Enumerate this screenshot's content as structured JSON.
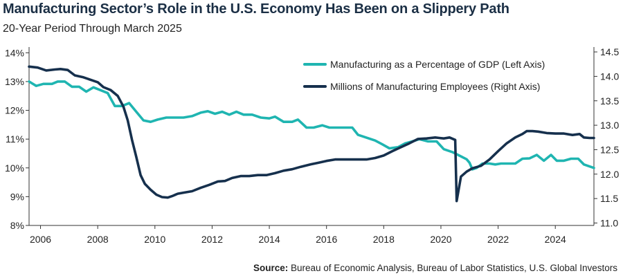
{
  "title": "Manufacturing Sector’s Role in the U.S. Economy Has Been on a Slippery Path",
  "subtitle": "20-Year Period Through March 2025",
  "source_label": "Source:",
  "source_text": "Bureau of Economic Analysis, Bureau of Labor Statistics, U.S. Global Investors",
  "colors": {
    "gdp": "#1fb5b1",
    "employees": "#16304d",
    "axis": "#333333"
  },
  "chart_data": {
    "type": "line",
    "x_ticks": [
      2006,
      2008,
      2010,
      2012,
      2014,
      2016,
      2018,
      2020,
      2022,
      2024
    ],
    "x_range": [
      2005.6,
      2025.35
    ],
    "left_axis": {
      "ticks": [
        "8%",
        "9%",
        "10%",
        "11%",
        "12%",
        "13%",
        "14%"
      ],
      "range": [
        8,
        14.2
      ]
    },
    "right_axis": {
      "ticks": [
        "11.0",
        "11.5",
        "12.0",
        "12.5",
        "13.0",
        "13.5",
        "14.0",
        "14.5"
      ],
      "range": [
        10.95,
        14.6
      ]
    },
    "series": [
      {
        "name": "Manufacturing as a Percentage of GDP (Left Axis)",
        "axis": "left",
        "points": [
          [
            2005.6,
            13.0
          ],
          [
            2005.85,
            12.85
          ],
          [
            2006.1,
            12.92
          ],
          [
            2006.4,
            12.92
          ],
          [
            2006.6,
            13.0
          ],
          [
            2006.85,
            13.0
          ],
          [
            2007.1,
            12.82
          ],
          [
            2007.35,
            12.82
          ],
          [
            2007.6,
            12.65
          ],
          [
            2007.85,
            12.8
          ],
          [
            2008.1,
            12.7
          ],
          [
            2008.35,
            12.6
          ],
          [
            2008.6,
            12.15
          ],
          [
            2008.85,
            12.15
          ],
          [
            2009.1,
            12.25
          ],
          [
            2009.35,
            11.95
          ],
          [
            2009.6,
            11.65
          ],
          [
            2009.85,
            11.6
          ],
          [
            2010.1,
            11.68
          ],
          [
            2010.4,
            11.75
          ],
          [
            2010.7,
            11.75
          ],
          [
            2011.0,
            11.75
          ],
          [
            2011.3,
            11.8
          ],
          [
            2011.6,
            11.92
          ],
          [
            2011.85,
            11.97
          ],
          [
            2012.1,
            11.88
          ],
          [
            2012.35,
            11.95
          ],
          [
            2012.6,
            11.85
          ],
          [
            2012.85,
            11.95
          ],
          [
            2013.1,
            11.85
          ],
          [
            2013.4,
            11.85
          ],
          [
            2013.7,
            11.75
          ],
          [
            2014.0,
            11.72
          ],
          [
            2014.2,
            11.78
          ],
          [
            2014.5,
            11.6
          ],
          [
            2014.8,
            11.6
          ],
          [
            2015.0,
            11.68
          ],
          [
            2015.3,
            11.4
          ],
          [
            2015.55,
            11.4
          ],
          [
            2015.85,
            11.48
          ],
          [
            2016.1,
            11.4
          ],
          [
            2016.4,
            11.4
          ],
          [
            2016.7,
            11.4
          ],
          [
            2016.9,
            11.4
          ],
          [
            2017.1,
            11.15
          ],
          [
            2017.4,
            11.05
          ],
          [
            2017.7,
            10.95
          ],
          [
            2017.95,
            10.82
          ],
          [
            2018.2,
            10.68
          ],
          [
            2018.5,
            10.72
          ],
          [
            2018.75,
            10.85
          ],
          [
            2019.0,
            10.92
          ],
          [
            2019.25,
            11.0
          ],
          [
            2019.55,
            10.92
          ],
          [
            2019.85,
            10.92
          ],
          [
            2020.1,
            10.65
          ],
          [
            2020.4,
            10.55
          ],
          [
            2020.7,
            10.4
          ],
          [
            2020.9,
            10.3
          ],
          [
            2021.0,
            10.18
          ],
          [
            2021.1,
            9.95
          ],
          [
            2021.25,
            10.0
          ],
          [
            2021.45,
            10.15
          ],
          [
            2021.7,
            10.15
          ],
          [
            2021.9,
            10.12
          ],
          [
            2022.1,
            10.15
          ],
          [
            2022.35,
            10.15
          ],
          [
            2022.6,
            10.15
          ],
          [
            2022.85,
            10.32
          ],
          [
            2023.1,
            10.33
          ],
          [
            2023.35,
            10.45
          ],
          [
            2023.6,
            10.25
          ],
          [
            2023.85,
            10.45
          ],
          [
            2024.05,
            10.25
          ],
          [
            2024.3,
            10.25
          ],
          [
            2024.55,
            10.32
          ],
          [
            2024.8,
            10.32
          ],
          [
            2025.0,
            10.12
          ],
          [
            2025.2,
            10.05
          ],
          [
            2025.35,
            10.0
          ]
        ]
      },
      {
        "name": "Millions of Manufacturing Employees (Right Axis)",
        "axis": "right",
        "points": [
          [
            2005.6,
            14.2
          ],
          [
            2005.9,
            14.18
          ],
          [
            2006.2,
            14.12
          ],
          [
            2006.5,
            14.14
          ],
          [
            2006.7,
            14.15
          ],
          [
            2006.95,
            14.13
          ],
          [
            2007.2,
            14.02
          ],
          [
            2007.5,
            13.98
          ],
          [
            2007.8,
            13.92
          ],
          [
            2008.0,
            13.88
          ],
          [
            2008.2,
            13.78
          ],
          [
            2008.45,
            13.72
          ],
          [
            2008.7,
            13.6
          ],
          [
            2008.9,
            13.38
          ],
          [
            2009.05,
            13.1
          ],
          [
            2009.2,
            12.7
          ],
          [
            2009.35,
            12.35
          ],
          [
            2009.5,
            11.98
          ],
          [
            2009.65,
            11.8
          ],
          [
            2009.85,
            11.68
          ],
          [
            2010.05,
            11.58
          ],
          [
            2010.25,
            11.53
          ],
          [
            2010.45,
            11.52
          ],
          [
            2010.6,
            11.55
          ],
          [
            2010.8,
            11.6
          ],
          [
            2011.0,
            11.62
          ],
          [
            2011.3,
            11.65
          ],
          [
            2011.6,
            11.72
          ],
          [
            2011.9,
            11.78
          ],
          [
            2012.2,
            11.85
          ],
          [
            2012.45,
            11.86
          ],
          [
            2012.7,
            11.92
          ],
          [
            2013.0,
            11.96
          ],
          [
            2013.3,
            11.96
          ],
          [
            2013.6,
            11.98
          ],
          [
            2013.9,
            11.98
          ],
          [
            2014.2,
            12.02
          ],
          [
            2014.5,
            12.07
          ],
          [
            2014.8,
            12.1
          ],
          [
            2015.1,
            12.15
          ],
          [
            2015.45,
            12.2
          ],
          [
            2015.7,
            12.23
          ],
          [
            2016.0,
            12.27
          ],
          [
            2016.3,
            12.3
          ],
          [
            2016.6,
            12.3
          ],
          [
            2016.9,
            12.3
          ],
          [
            2017.1,
            12.3
          ],
          [
            2017.4,
            12.3
          ],
          [
            2017.7,
            12.33
          ],
          [
            2018.0,
            12.38
          ],
          [
            2018.3,
            12.47
          ],
          [
            2018.6,
            12.55
          ],
          [
            2018.9,
            12.63
          ],
          [
            2019.2,
            12.72
          ],
          [
            2019.5,
            12.73
          ],
          [
            2019.8,
            12.75
          ],
          [
            2020.1,
            12.73
          ],
          [
            2020.3,
            12.75
          ],
          [
            2020.5,
            12.7
          ],
          [
            2020.55,
            11.45
          ],
          [
            2020.7,
            11.95
          ],
          [
            2020.9,
            12.05
          ],
          [
            2021.1,
            12.12
          ],
          [
            2021.4,
            12.17
          ],
          [
            2021.7,
            12.3
          ],
          [
            2022.0,
            12.47
          ],
          [
            2022.3,
            12.63
          ],
          [
            2022.6,
            12.75
          ],
          [
            2022.85,
            12.82
          ],
          [
            2023.0,
            12.88
          ],
          [
            2023.2,
            12.88
          ],
          [
            2023.4,
            12.87
          ],
          [
            2023.7,
            12.84
          ],
          [
            2024.0,
            12.83
          ],
          [
            2024.3,
            12.83
          ],
          [
            2024.6,
            12.8
          ],
          [
            2024.85,
            12.82
          ],
          [
            2025.0,
            12.75
          ],
          [
            2025.2,
            12.74
          ],
          [
            2025.35,
            12.74
          ]
        ]
      }
    ]
  }
}
